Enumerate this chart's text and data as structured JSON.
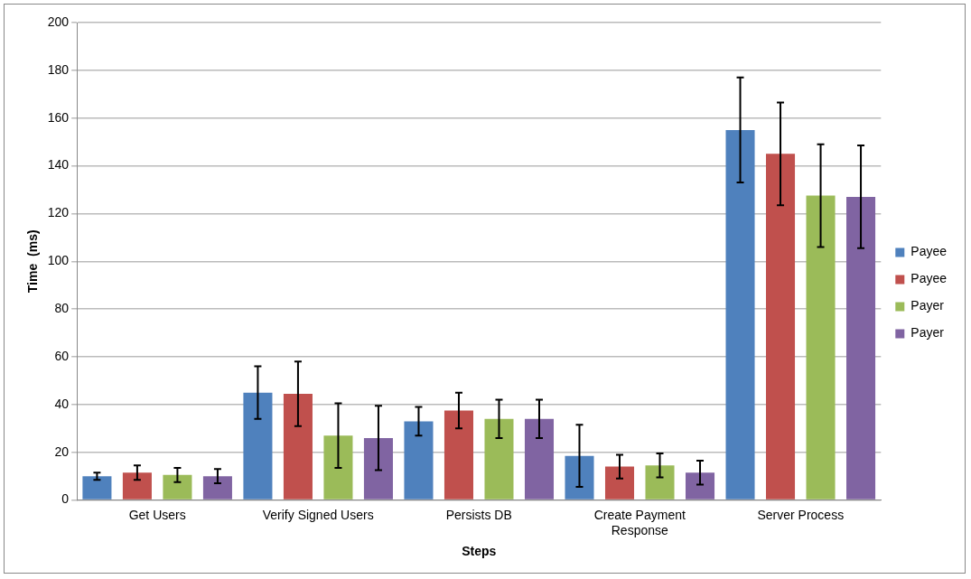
{
  "chart_data": {
    "type": "bar",
    "xlabel": "Steps",
    "ylabel": "Time  (ms)",
    "categories": [
      "Get Users",
      "Verify Signed Users",
      "Persists DB",
      "Create Payment Response",
      "Server Process"
    ],
    "series": [
      {
        "name": "Payee",
        "color": "#4f81bd",
        "values": [
          10,
          45,
          33,
          18.5,
          155
        ],
        "errors": [
          1.5,
          11,
          6,
          13,
          22
        ]
      },
      {
        "name": "Payee",
        "color": "#c0504d",
        "values": [
          11.5,
          44.5,
          37.5,
          14,
          145
        ],
        "errors": [
          3,
          13.5,
          7.5,
          5,
          21.5
        ]
      },
      {
        "name": "Payer",
        "color": "#9bbb59",
        "values": [
          10.5,
          27,
          34,
          14.5,
          127.5
        ],
        "errors": [
          3,
          13.5,
          8,
          5,
          21.5
        ]
      },
      {
        "name": "Payer",
        "color": "#8064a2",
        "values": [
          10,
          26,
          34,
          11.5,
          127
        ],
        "errors": [
          3,
          13.5,
          8,
          5,
          21.5
        ]
      }
    ],
    "ylim": [
      0,
      200
    ],
    "yticks": [
      0,
      20,
      40,
      60,
      80,
      100,
      120,
      140,
      160,
      180,
      200
    ],
    "grid": "y",
    "legend": "right"
  }
}
